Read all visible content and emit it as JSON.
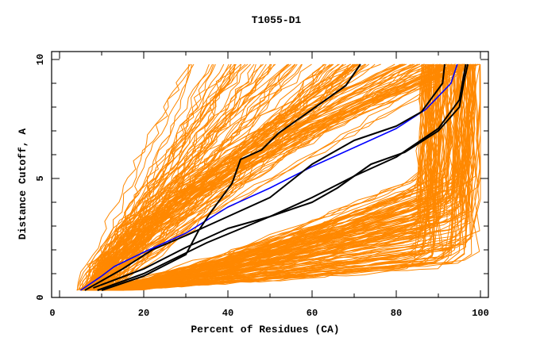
{
  "chart_data": {
    "type": "line",
    "title": "T1055-D1",
    "xlabel": "Percent of Residues (CA)",
    "ylabel": "Distance Cutoff, A",
    "xlim": [
      0,
      100
    ],
    "ylim": [
      0,
      10
    ],
    "x_ticks": [
      0,
      20,
      40,
      60,
      80,
      100
    ],
    "x_tick_labels": [
      "0",
      "20",
      "40",
      "60",
      "80",
      "100"
    ],
    "x_minor_step": 10,
    "y_ticks": [
      0,
      5,
      10
    ],
    "y_tick_labels": [
      "0",
      "5",
      "10"
    ],
    "y_minor_step": 1,
    "grid": false,
    "legend": "none",
    "colors": {
      "background_models": "#FF8800",
      "highlight_blue": "#0000FF",
      "highlight_black": "#000000",
      "axes": "#000000"
    },
    "highlight_series": [
      {
        "name": "blue-model",
        "color": "#0000FF",
        "points": [
          [
            5,
            0.3
          ],
          [
            10,
            0.9
          ],
          [
            13,
            1.3
          ],
          [
            20,
            1.9
          ],
          [
            25,
            2.3
          ],
          [
            30,
            2.7
          ],
          [
            40,
            3.8
          ],
          [
            50,
            4.6
          ],
          [
            60,
            5.5
          ],
          [
            70,
            6.3
          ],
          [
            80,
            7.1
          ],
          [
            87,
            7.9
          ],
          [
            93,
            9.0
          ],
          [
            94.5,
            9.8
          ]
        ]
      },
      {
        "name": "black-model-a",
        "color": "#000000",
        "points": [
          [
            10,
            0.3
          ],
          [
            20,
            0.9
          ],
          [
            30,
            1.8
          ],
          [
            33,
            2.8
          ],
          [
            36,
            3.6
          ],
          [
            41,
            4.8
          ],
          [
            43,
            5.8
          ],
          [
            48,
            6.2
          ],
          [
            52,
            6.9
          ],
          [
            60,
            7.9
          ],
          [
            68,
            8.9
          ],
          [
            71.5,
            9.8
          ]
        ]
      },
      {
        "name": "black-model-b",
        "color": "#000000",
        "points": [
          [
            6,
            0.3
          ],
          [
            15,
            1.2
          ],
          [
            22,
            2.0
          ],
          [
            30,
            2.6
          ],
          [
            40,
            3.4
          ],
          [
            50,
            4.2
          ],
          [
            60,
            5.6
          ],
          [
            70,
            6.6
          ],
          [
            80,
            7.2
          ],
          [
            86,
            7.8
          ],
          [
            91,
            9.0
          ],
          [
            91.5,
            9.8
          ]
        ]
      },
      {
        "name": "black-model-c1",
        "color": "#000000",
        "points": [
          [
            8,
            0.4
          ],
          [
            20,
            1.2
          ],
          [
            30,
            2.1
          ],
          [
            40,
            2.9
          ],
          [
            50,
            3.4
          ],
          [
            60,
            4.0
          ],
          [
            66,
            4.6
          ],
          [
            74,
            5.6
          ],
          [
            82,
            6.1
          ],
          [
            90,
            7.0
          ],
          [
            95,
            8.0
          ],
          [
            96,
            9.0
          ],
          [
            97,
            9.8
          ]
        ]
      },
      {
        "name": "black-model-c2",
        "color": "#000000",
        "points": [
          [
            9,
            0.3
          ],
          [
            20,
            1.0
          ],
          [
            35,
            2.3
          ],
          [
            50,
            3.4
          ],
          [
            60,
            4.2
          ],
          [
            70,
            5.1
          ],
          [
            80,
            5.9
          ],
          [
            90,
            7.1
          ],
          [
            95,
            8.3
          ],
          [
            96.5,
            9.8
          ]
        ]
      }
    ],
    "background_families": [
      {
        "name": "steep-models",
        "count": 70,
        "start_pct": [
          4,
          12
        ],
        "end_pct": [
          30,
          75
        ],
        "start_dist": 0.3,
        "end_dist": 9.8,
        "curvature": [
          0.8,
          1.3
        ]
      },
      {
        "name": "mid-models",
        "count": 60,
        "start_pct": [
          5,
          12
        ],
        "end_pct": [
          70,
          100
        ],
        "start_dist": 0.3,
        "end_dist": 9.8,
        "curvature": [
          1.0,
          1.8
        ]
      },
      {
        "name": "shallow-models",
        "count": 140,
        "start_pct": [
          5,
          12
        ],
        "end_pct": [
          86,
          100
        ],
        "start_dist": 0.3,
        "end_dist_low": [
          1.2,
          5.2
        ],
        "end_dist": 9.8,
        "curvature": [
          1.5,
          2.5
        ]
      }
    ]
  }
}
